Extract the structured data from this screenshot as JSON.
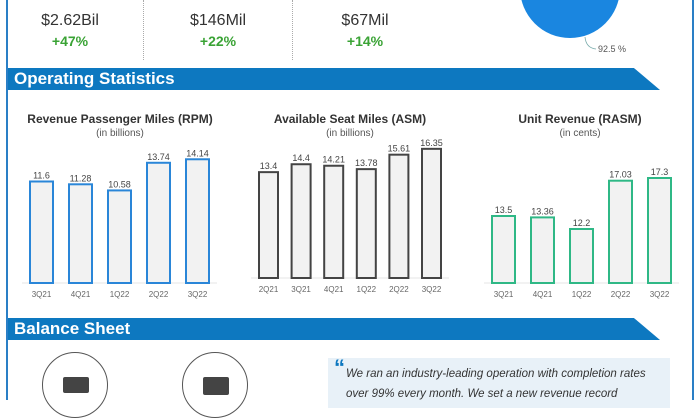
{
  "top_stats": [
    {
      "value": "$2.62Bil",
      "change": "+47%"
    },
    {
      "value": "$146Mil",
      "change": "+22%"
    },
    {
      "value": "$67Mil",
      "change": "+14%"
    }
  ],
  "pie": {
    "label": "92.5 %",
    "color": "#1a86e0"
  },
  "sections": {
    "operating": "Operating Statistics",
    "balance": "Balance Sheet"
  },
  "quote": {
    "mark": "“",
    "text": "We ran an industry-leading operation with completion rates over 99% every month. We set a new revenue record"
  },
  "colors": {
    "accent": "#0d78c0",
    "positive": "#3aa335"
  },
  "chart_data": [
    {
      "type": "bar",
      "title": "Revenue Passenger Miles (RPM)",
      "subtitle": "(in billions)",
      "categories": [
        "3Q21",
        "4Q21",
        "1Q22",
        "2Q22",
        "3Q22"
      ],
      "values": [
        11.6,
        11.28,
        10.58,
        13.74,
        14.14
      ],
      "labels": [
        "11.6",
        "11.28",
        "10.58",
        "13.74",
        "14.14"
      ],
      "color": "#2a86d8"
    },
    {
      "type": "bar",
      "title": "Available Seat Miles (ASM)",
      "subtitle": "(in billions)",
      "categories": [
        "2Q21",
        "3Q21",
        "4Q21",
        "1Q22",
        "2Q22",
        "3Q22"
      ],
      "values": [
        13.4,
        14.4,
        14.21,
        13.78,
        15.61,
        16.35
      ],
      "labels": [
        "13.4",
        "14.4",
        "14.21",
        "13.78",
        "15.61",
        "16.35"
      ],
      "color": "#444444"
    },
    {
      "type": "bar",
      "title": "Unit Revenue (RASM)",
      "subtitle": "(in cents)",
      "categories": [
        "3Q21",
        "4Q21",
        "1Q22",
        "2Q22",
        "3Q22"
      ],
      "values": [
        13.5,
        13.36,
        12.2,
        17.03,
        17.3
      ],
      "labels": [
        "13.5",
        "13.36",
        "12.2",
        "17.03",
        "17.3"
      ],
      "color": "#2fb886"
    }
  ]
}
